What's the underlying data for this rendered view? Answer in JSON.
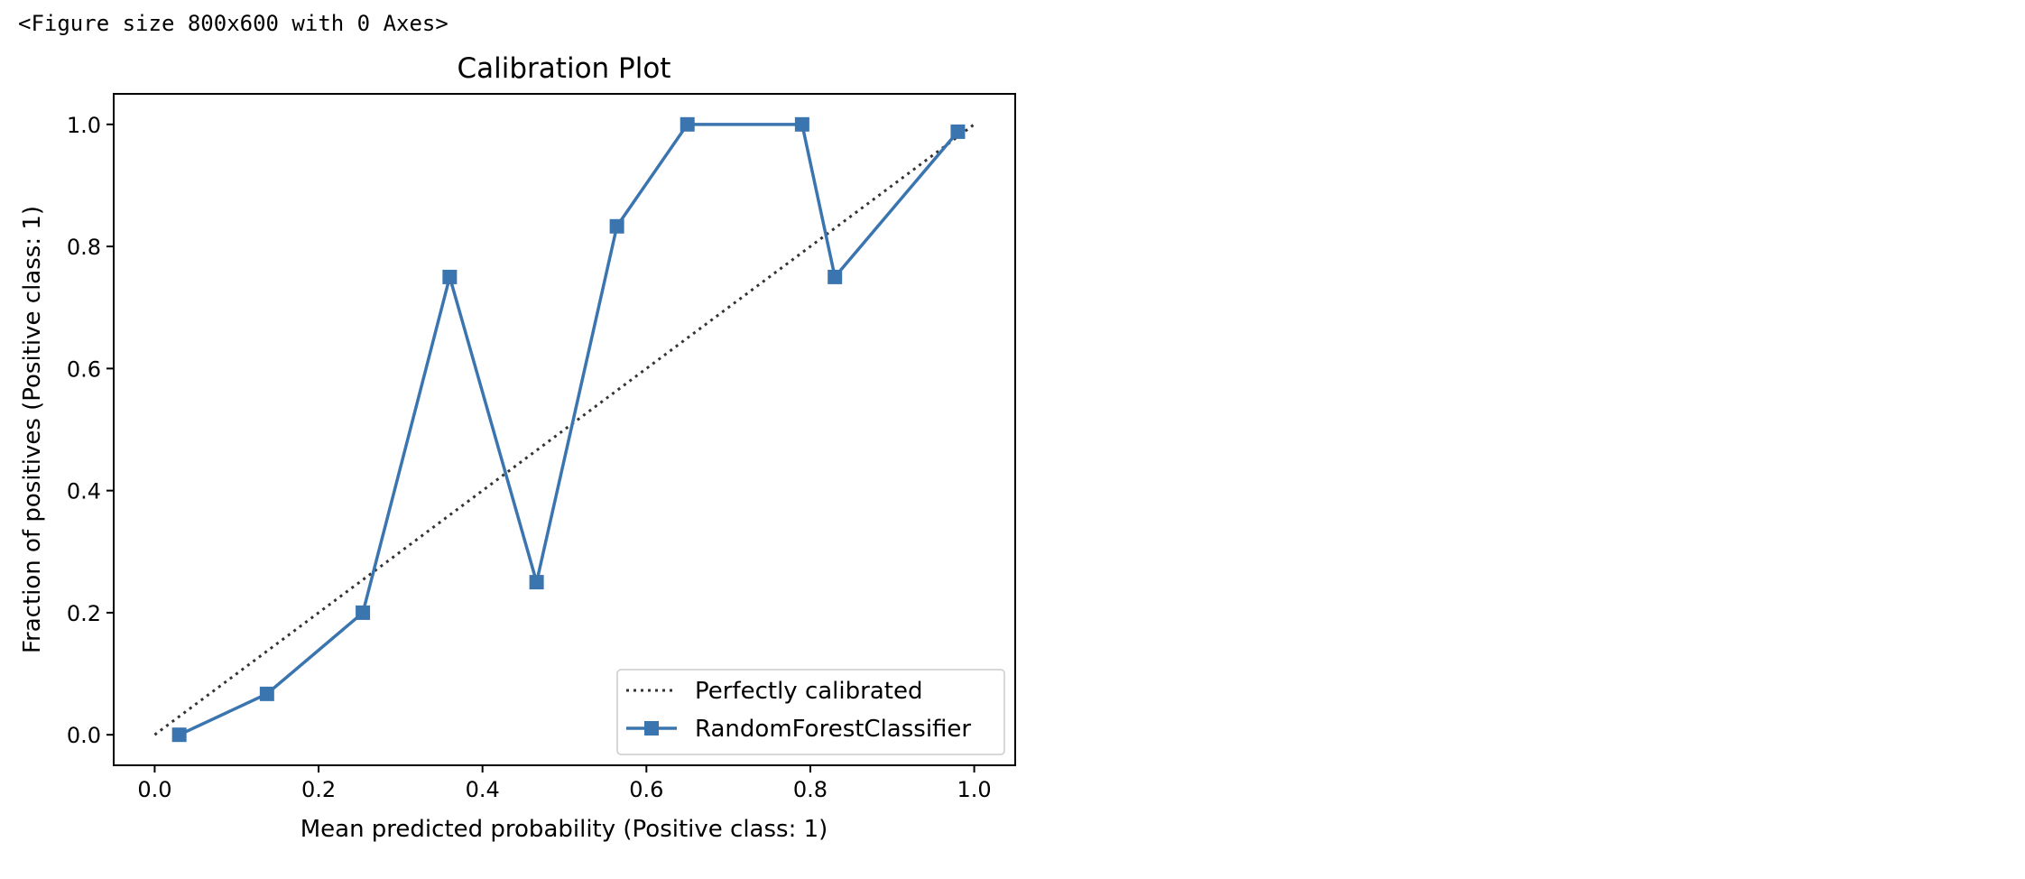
{
  "output_text": "<Figure size 800x600 with 0 Axes>",
  "chart_data": {
    "type": "line",
    "title": "Calibration Plot",
    "xlabel": "Mean predicted probability (Positive class: 1)",
    "ylabel": "Fraction of positives (Positive class: 1)",
    "xlim": [
      -0.05,
      1.05
    ],
    "ylim": [
      -0.05,
      1.05
    ],
    "xticks": [
      0.0,
      0.2,
      0.4,
      0.6,
      0.8,
      1.0
    ],
    "xtick_labels": [
      "0.0",
      "0.2",
      "0.4",
      "0.6",
      "0.8",
      "1.0"
    ],
    "yticks": [
      0.0,
      0.2,
      0.4,
      0.6,
      0.8,
      1.0
    ],
    "ytick_labels": [
      "0.0",
      "0.2",
      "0.4",
      "0.6",
      "0.8",
      "1.0"
    ],
    "grid": false,
    "legend_position": "lower-right",
    "series": [
      {
        "name": "Perfectly calibrated",
        "style": "dotted",
        "color": "#333333",
        "marker": "none",
        "x": [
          0,
          1
        ],
        "y": [
          0,
          1
        ]
      },
      {
        "name": "RandomForestClassifier",
        "style": "solid",
        "color": "#3b75af",
        "marker": "square",
        "x": [
          0.03,
          0.137,
          0.254,
          0.36,
          0.466,
          0.564,
          0.65,
          0.79,
          0.83,
          0.98
        ],
        "y": [
          0.0,
          0.067,
          0.2,
          0.75,
          0.25,
          0.833,
          1.0,
          1.0,
          0.75,
          0.988
        ]
      }
    ]
  }
}
